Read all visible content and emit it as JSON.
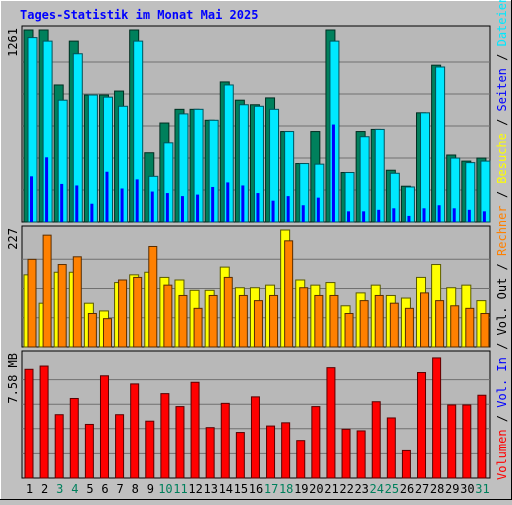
{
  "title": "Tages-Statistik im Monat Mai 2025",
  "colors": {
    "background": "#c0c0c0",
    "plot": "#b8b8b8",
    "title": "#0000ff",
    "hits": "#00805c",
    "files": "#00e8ff",
    "pages": "#0000ff",
    "visits": "#ffff00",
    "sites": "#ff8000",
    "kbytes": "#ff0000",
    "weekend_day": "#00805c",
    "weekday": "#000000"
  },
  "chart_data": [
    {
      "type": "bar",
      "panel": "requests",
      "ymax_label": "1261",
      "ylim": [
        0,
        1261
      ],
      "grid": true,
      "categories": [
        "1",
        "2",
        "3",
        "4",
        "5",
        "6",
        "7",
        "8",
        "9",
        "10",
        "11",
        "12",
        "13",
        "14",
        "15",
        "16",
        "17",
        "18",
        "19",
        "20",
        "21",
        "22",
        "23",
        "24",
        "25",
        "26",
        "27",
        "28",
        "29",
        "30",
        "31"
      ],
      "weekend_days": [
        "3",
        "4",
        "10",
        "11",
        "17",
        "18",
        "24",
        "25",
        "31"
      ],
      "series": [
        {
          "name": "Anfragen",
          "color_key": "hits",
          "values": [
            1261,
            1261,
            900,
            1188,
            834,
            834,
            860,
            1261,
            455,
            650,
            740,
            740,
            668,
            920,
            800,
            770,
            815,
            594,
            384,
            594,
            1261,
            325,
            594,
            608,
            340,
            235,
            717,
            1030,
            440,
            400,
            420
          ]
        },
        {
          "name": "Dateien",
          "color_key": "files",
          "values": [
            1211,
            1188,
            800,
            1105,
            834,
            820,
            760,
            1188,
            300,
            520,
            710,
            740,
            668,
            900,
            770,
            760,
            740,
            594,
            384,
            380,
            1188,
            325,
            560,
            608,
            320,
            230,
            717,
            1018,
            420,
            390,
            400
          ]
        },
        {
          "name": "Seiten",
          "color_key": "pages",
          "values": [
            300,
            425,
            250,
            240,
            120,
            330,
            220,
            280,
            200,
            190,
            170,
            180,
            230,
            260,
            240,
            190,
            140,
            170,
            110,
            160,
            640,
            70,
            70,
            80,
            90,
            40,
            90,
            110,
            90,
            80,
            70
          ]
        }
      ]
    },
    {
      "type": "bar",
      "panel": "visits",
      "ymax_label": "227",
      "ylim": [
        0,
        227
      ],
      "grid": true,
      "categories": [
        "1",
        "2",
        "3",
        "4",
        "5",
        "6",
        "7",
        "8",
        "9",
        "10",
        "11",
        "12",
        "13",
        "14",
        "15",
        "16",
        "17",
        "18",
        "19",
        "20",
        "21",
        "22",
        "23",
        "24",
        "25",
        "26",
        "27",
        "28",
        "29",
        "30",
        "31"
      ],
      "series": [
        {
          "name": "Besuche",
          "color_key": "visits",
          "values": [
            140,
            85,
            145,
            145,
            85,
            70,
            125,
            140,
            145,
            135,
            130,
            110,
            110,
            155,
            115,
            115,
            120,
            227,
            130,
            120,
            125,
            80,
            105,
            120,
            100,
            95,
            135,
            160,
            115,
            120,
            90
          ]
        },
        {
          "name": "Rechner",
          "color_key": "sites",
          "values": [
            170,
            217,
            160,
            175,
            65,
            55,
            130,
            135,
            195,
            120,
            100,
            75,
            100,
            135,
            100,
            90,
            100,
            206,
            115,
            100,
            100,
            65,
            90,
            100,
            85,
            75,
            105,
            90,
            80,
            75,
            65
          ]
        }
      ]
    },
    {
      "type": "bar",
      "panel": "volume",
      "ymax_label": "7.58 MB",
      "ylim": [
        0,
        7.58
      ],
      "grid": true,
      "categories": [
        "1",
        "2",
        "3",
        "4",
        "5",
        "6",
        "7",
        "8",
        "9",
        "10",
        "11",
        "12",
        "13",
        "14",
        "15",
        "16",
        "17",
        "18",
        "19",
        "20",
        "21",
        "22",
        "23",
        "24",
        "25",
        "26",
        "27",
        "28",
        "29",
        "30",
        "31"
      ],
      "series": [
        {
          "name": "Volumen",
          "color_key": "kbytes",
          "values": [
            6.7,
            6.9,
            3.9,
            4.9,
            3.3,
            6.3,
            3.9,
            5.8,
            3.5,
            5.2,
            4.4,
            5.9,
            3.1,
            4.6,
            2.8,
            5.0,
            3.2,
            3.4,
            2.3,
            4.4,
            6.8,
            3.0,
            2.9,
            4.7,
            3.7,
            1.7,
            6.5,
            7.4,
            4.5,
            4.5,
            5.1
          ]
        }
      ]
    }
  ],
  "right_labels": [
    {
      "text": "Anfragen",
      "color_key": "hits"
    },
    {
      "text": "Dateien",
      "color_key": "files"
    },
    {
      "text": "Seiten",
      "color_key": "pages"
    },
    {
      "text": "Besuche",
      "color_key": "visits"
    },
    {
      "text": "Rechner",
      "color_key": "sites"
    },
    {
      "text": "Vol. Out",
      "color_key": "weekday"
    },
    {
      "text": "Vol. In",
      "color_key": "pages"
    },
    {
      "text": "Volumen",
      "color_key": "kbytes"
    }
  ],
  "separator": " / "
}
